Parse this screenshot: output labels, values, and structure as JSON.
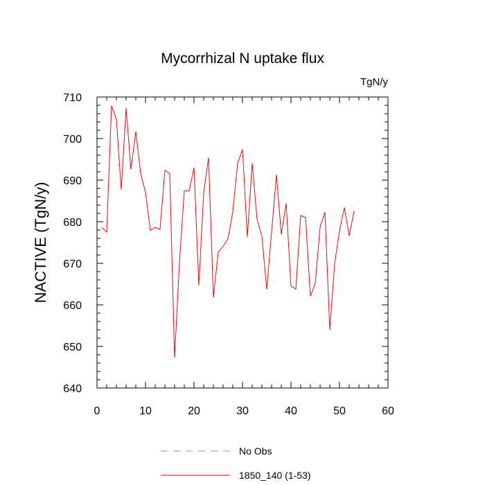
{
  "chart_data": {
    "type": "line",
    "title": "Mycorrhizal N uptake flux",
    "units_label": "TgN/y",
    "ylabel": "NACTIVE  (TgN/y)",
    "xlabel": "",
    "xlim": [
      0,
      60
    ],
    "ylim": [
      640,
      710
    ],
    "xticks": [
      0,
      10,
      20,
      30,
      40,
      50,
      60
    ],
    "yticks": [
      640,
      650,
      660,
      670,
      680,
      690,
      700,
      710
    ],
    "grid": false,
    "legend_position": "bottom-center",
    "series": [
      {
        "name": "1850_140 (1-53)",
        "color": "#ff0000",
        "dashed": false,
        "x": [
          1,
          2,
          3,
          4,
          5,
          6,
          7,
          8,
          9,
          10,
          11,
          12,
          13,
          14,
          15,
          16,
          17,
          18,
          19,
          20,
          21,
          22,
          23,
          24,
          25,
          26,
          27,
          28,
          29,
          30,
          31,
          32,
          33,
          34,
          35,
          36,
          37,
          38,
          39,
          40,
          41,
          42,
          43,
          44,
          45,
          46,
          47,
          48,
          49,
          50,
          51,
          52,
          53
        ],
        "y": [
          678.6,
          677.5,
          707.9,
          704.6,
          687.7,
          707.3,
          692.6,
          701.7,
          691.6,
          687.0,
          677.9,
          678.6,
          678.2,
          692.4,
          691.5,
          647.3,
          670.1,
          687.4,
          687.4,
          693.0,
          664.7,
          687.0,
          695.4,
          661.8,
          672.7,
          674.0,
          675.9,
          682.4,
          694.1,
          697.4,
          676.3,
          694.1,
          680.6,
          676.5,
          663.7,
          677.6,
          691.3,
          676.9,
          684.4,
          664.5,
          663.8,
          681.5,
          681.0,
          662.1,
          665.2,
          678.7,
          682.3,
          654.0,
          669.9,
          677.8,
          683.4,
          676.6,
          682.6
        ]
      },
      {
        "name": "No Obs",
        "color": "#8a8aee",
        "dashed": true,
        "x": [],
        "y": []
      }
    ]
  }
}
